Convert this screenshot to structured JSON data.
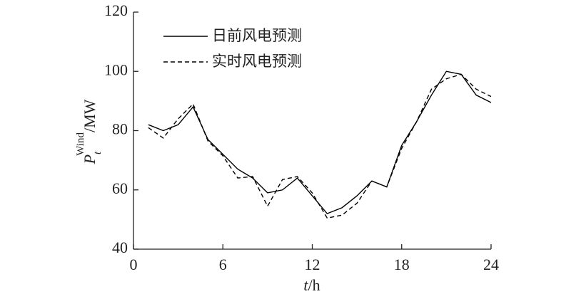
{
  "chart_data": {
    "type": "line",
    "xlabel": {
      "symbol": "t",
      "unit": "/h"
    },
    "ylabel": {
      "symbol": "P",
      "sub": "t",
      "sup": "Wind",
      "unit": "/MW"
    },
    "x": [
      1,
      2,
      3,
      4,
      5,
      6,
      7,
      8,
      9,
      10,
      11,
      12,
      13,
      14,
      15,
      16,
      17,
      18,
      19,
      20,
      21,
      22,
      23,
      24
    ],
    "series": [
      {
        "name": "日前风电预测",
        "color": "#000000",
        "dash": false,
        "values": [
          82,
          80,
          82,
          88,
          77,
          72,
          67,
          64,
          59,
          60,
          64,
          58,
          52,
          54,
          58,
          63,
          61,
          75,
          83,
          92,
          100,
          99,
          92,
          89.5
        ]
      },
      {
        "name": "实时风电预测",
        "color": "#000000",
        "dash": true,
        "values": [
          81,
          77.5,
          84,
          89,
          76.5,
          71.5,
          64,
          64.5,
          54.5,
          63.5,
          64.5,
          59,
          50.5,
          51.5,
          55.5,
          63,
          61,
          74,
          83,
          94,
          97.5,
          99,
          94,
          91.5
        ]
      }
    ],
    "xlim": [
      0,
      24
    ],
    "xticks": [
      0,
      6,
      12,
      18,
      24
    ],
    "ylim": [
      40,
      120
    ],
    "yticks": [
      40,
      60,
      80,
      100,
      120
    ],
    "legend": "upper left"
  }
}
